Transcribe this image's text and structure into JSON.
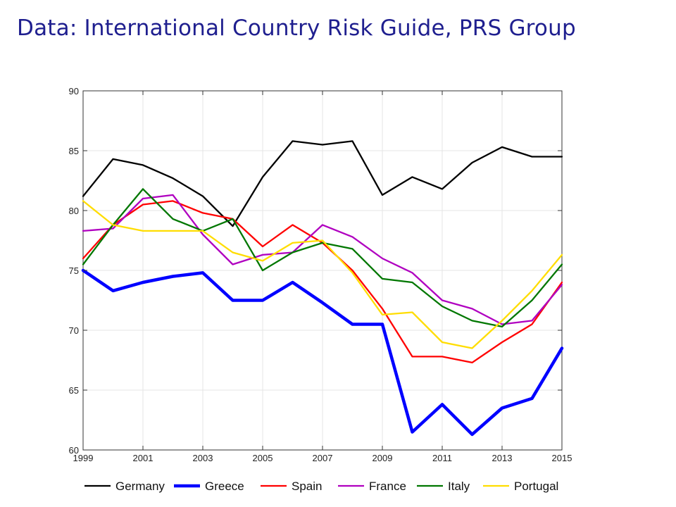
{
  "slide": {
    "title": "Data: International Country Risk Guide, PRS Group"
  },
  "chart_data": {
    "type": "line",
    "title": "",
    "xlabel": "",
    "ylabel": "",
    "xlim": [
      1999,
      2015
    ],
    "ylim": [
      60,
      90
    ],
    "grid": true,
    "legend_placement": "bottom",
    "x": [
      1999,
      2000,
      2001,
      2002,
      2003,
      2004,
      2005,
      2006,
      2007,
      2008,
      2009,
      2010,
      2011,
      2012,
      2013,
      2014,
      2015
    ],
    "x_ticks": [
      "1999",
      "2001",
      "2003",
      "2005",
      "2007",
      "2009",
      "2011",
      "2013",
      "2015"
    ],
    "y_ticks": [
      "60",
      "65",
      "70",
      "75",
      "80",
      "85",
      "90"
    ],
    "series": [
      {
        "name": "Germany",
        "color": "#000000",
        "width": "thin",
        "values": [
          81.2,
          84.3,
          83.8,
          82.7,
          81.2,
          78.7,
          82.8,
          85.8,
          85.5,
          85.8,
          81.3,
          82.8,
          81.8,
          84.0,
          85.3,
          84.5,
          84.5
        ]
      },
      {
        "name": "Greece",
        "color": "#0000ff",
        "width": "thick",
        "values": [
          75.0,
          73.3,
          74.0,
          74.5,
          74.8,
          72.5,
          72.5,
          74.0,
          72.3,
          70.5,
          70.5,
          61.5,
          63.8,
          61.3,
          63.5,
          64.3,
          68.5
        ]
      },
      {
        "name": "Spain",
        "color": "#ff0000",
        "width": "thin",
        "values": [
          76.0,
          78.8,
          80.5,
          80.8,
          79.8,
          79.3,
          77.0,
          78.8,
          77.3,
          75.0,
          71.8,
          67.8,
          67.8,
          67.3,
          69.0,
          70.5,
          74.0
        ]
      },
      {
        "name": "France",
        "color": "#b000c0",
        "width": "thin",
        "values": [
          78.3,
          78.5,
          81.0,
          81.3,
          78.0,
          75.5,
          76.3,
          76.5,
          78.8,
          77.8,
          76.0,
          74.8,
          72.5,
          71.8,
          70.5,
          70.8,
          73.8
        ]
      },
      {
        "name": "Italy",
        "color": "#007700",
        "width": "thin",
        "values": [
          75.5,
          78.8,
          81.8,
          79.3,
          78.3,
          79.3,
          75.0,
          76.5,
          77.3,
          76.8,
          74.3,
          74.0,
          72.0,
          70.8,
          70.3,
          72.5,
          75.5
        ]
      },
      {
        "name": "Portugal",
        "color": "#ffdd00",
        "width": "thin",
        "values": [
          80.8,
          78.8,
          78.3,
          78.3,
          78.3,
          76.5,
          75.8,
          77.3,
          77.5,
          74.8,
          71.3,
          71.5,
          69.0,
          68.5,
          70.8,
          73.3,
          76.3
        ]
      }
    ]
  }
}
